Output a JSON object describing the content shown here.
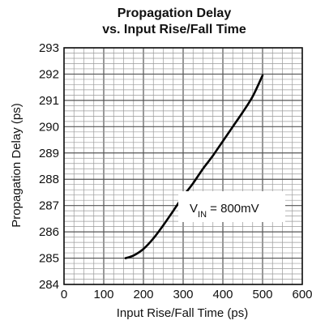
{
  "chart_data": {
    "type": "line",
    "title": "Propagation Delay",
    "subtitle": "vs. Input Rise/Fall Time",
    "xlabel": "Input Rise/Fall Time (ps)",
    "ylabel": "Propagation Delay (ps)",
    "xlim": [
      0,
      600
    ],
    "ylim": [
      284,
      293
    ],
    "xticks": [
      "0",
      "100",
      "200",
      "300",
      "400",
      "500",
      "600"
    ],
    "yticks": [
      "284",
      "285",
      "286",
      "287",
      "288",
      "289",
      "290",
      "291",
      "292",
      "293"
    ],
    "grid": true,
    "series": [
      {
        "x": [
          155,
          175,
          200,
          225,
          250,
          275,
          300,
          325,
          350,
          375,
          400,
          425,
          450,
          475,
          500
        ],
        "values": [
          285.0,
          285.1,
          285.35,
          285.75,
          286.25,
          286.8,
          287.35,
          287.85,
          288.4,
          288.9,
          289.45,
          290.0,
          290.55,
          291.15,
          291.95
        ]
      }
    ],
    "annotation": {
      "main": "V",
      "sub": "IN",
      "rest": " = 800mV"
    }
  }
}
